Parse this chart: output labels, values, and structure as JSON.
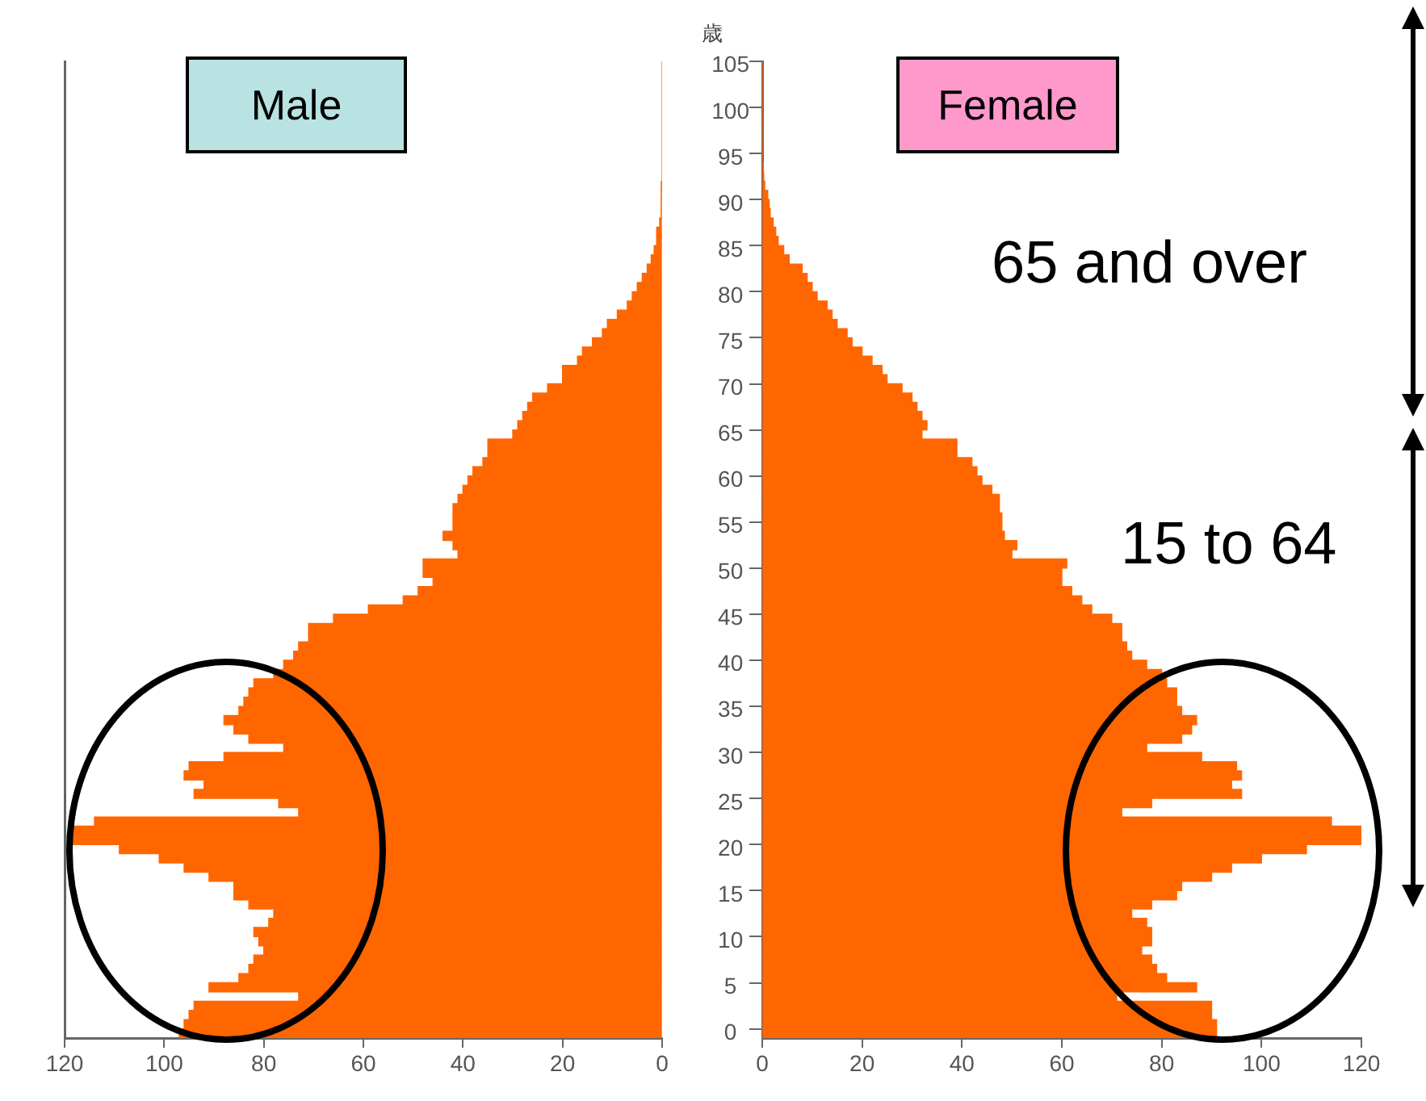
{
  "chart_data": [
    {
      "type": "bar",
      "orientation": "horizontal",
      "annotations": [
        "Male"
      ],
      "categories": [
        "105",
        null,
        null,
        null,
        null,
        "100",
        null,
        null,
        null,
        null,
        "95",
        null,
        null,
        null,
        null,
        "90",
        null,
        null,
        null,
        null,
        "85",
        null,
        null,
        null,
        null,
        "80",
        null,
        null,
        null,
        null,
        "75",
        null,
        null,
        null,
        null,
        "70",
        null,
        null,
        null,
        null,
        "65",
        null,
        null,
        null,
        null,
        "60",
        null,
        null,
        null,
        null,
        "55",
        null,
        null,
        null,
        null,
        "50",
        null,
        null,
        null,
        null,
        "45",
        null,
        null,
        null,
        null,
        "40",
        null,
        null,
        null,
        null,
        "35",
        null,
        null,
        null,
        null,
        "30",
        null,
        null,
        null,
        null,
        "25",
        null,
        null,
        null,
        null,
        "20",
        null,
        null,
        null,
        null,
        "15",
        null,
        null,
        null,
        null,
        "10",
        null,
        null,
        null,
        null,
        "5",
        null,
        null,
        null,
        null,
        "0"
      ],
      "values": [
        0,
        0,
        0,
        0,
        0,
        0,
        0,
        0,
        0,
        0,
        0,
        0,
        0,
        0.1,
        0.2,
        0.2,
        0.2,
        0.5,
        1.1,
        1.1,
        1.6,
        2.2,
        3,
        4,
        5,
        6,
        7,
        9,
        11,
        12,
        14,
        16,
        17,
        20,
        20,
        23,
        26,
        27,
        28,
        29,
        30,
        35,
        35,
        36,
        38,
        39,
        40,
        41,
        42,
        42,
        42,
        44,
        42,
        41,
        48,
        48,
        46,
        49,
        52,
        59,
        66,
        71,
        71,
        73,
        74,
        76,
        78,
        82,
        83,
        84,
        85,
        88,
        86,
        83,
        76,
        88,
        95,
        96,
        92,
        94,
        77,
        73,
        114,
        119,
        119,
        109,
        101,
        96,
        91,
        86,
        86,
        83,
        78,
        79,
        82,
        81,
        80,
        82,
        83,
        85,
        91,
        73,
        94,
        95,
        96,
        97
      ],
      "color": "#ff6600",
      "xlim": [
        120,
        0
      ],
      "xticks": [
        120,
        100,
        80,
        60,
        40,
        20,
        0
      ],
      "tick_labels": "x",
      "legend": false
    },
    {
      "type": "bar",
      "orientation": "horizontal",
      "ylabel": "歳",
      "annotations": [
        "Female",
        "65 and over",
        "15 to 64"
      ],
      "categories": [
        "105",
        null,
        null,
        null,
        null,
        "100",
        null,
        null,
        null,
        null,
        "95",
        null,
        null,
        null,
        null,
        "90",
        null,
        null,
        null,
        null,
        "85",
        null,
        null,
        null,
        null,
        "80",
        null,
        null,
        null,
        null,
        "75",
        null,
        null,
        null,
        null,
        "70",
        null,
        null,
        null,
        null,
        "65",
        null,
        null,
        null,
        null,
        "60",
        null,
        null,
        null,
        null,
        "55",
        null,
        null,
        null,
        null,
        "50",
        null,
        null,
        null,
        null,
        "45",
        null,
        null,
        null,
        null,
        "40",
        null,
        null,
        null,
        null,
        "35",
        null,
        null,
        null,
        null,
        "30",
        null,
        null,
        null,
        null,
        "25",
        null,
        null,
        null,
        null,
        "20",
        null,
        null,
        null,
        null,
        "15",
        null,
        null,
        null,
        null,
        "10",
        null,
        null,
        null,
        null,
        "5",
        null,
        null,
        null,
        null,
        "0"
      ],
      "values": [
        0,
        0,
        0,
        0,
        0,
        0,
        0,
        0,
        0,
        0,
        0,
        0.2,
        0.3,
        0.5,
        1.1,
        1.4,
        1.6,
        2.2,
        2.7,
        3.2,
        4.3,
        5.4,
        8,
        9,
        10,
        11,
        13,
        14,
        15,
        17,
        18,
        20,
        22,
        24,
        25,
        28,
        30,
        31,
        32,
        33,
        32,
        39,
        39,
        42,
        43,
        44,
        46,
        47.5,
        47.5,
        48,
        48,
        48.5,
        51,
        50,
        61,
        60,
        60,
        62,
        64,
        66,
        70,
        72,
        72,
        73,
        74,
        77,
        80,
        81,
        83,
        83,
        84,
        87,
        86,
        84,
        77,
        88,
        95,
        96,
        94,
        96,
        78,
        72,
        114,
        120,
        120,
        109,
        100,
        94,
        90,
        84,
        83,
        78,
        74,
        77,
        78,
        78,
        76,
        78,
        79,
        81,
        87,
        71,
        90,
        90,
        91,
        91
      ],
      "color": "#ff6600",
      "xlim": [
        0,
        120
      ],
      "xticks": [
        0,
        20,
        40,
        60,
        80,
        100,
        120
      ],
      "legend": false
    }
  ]
}
